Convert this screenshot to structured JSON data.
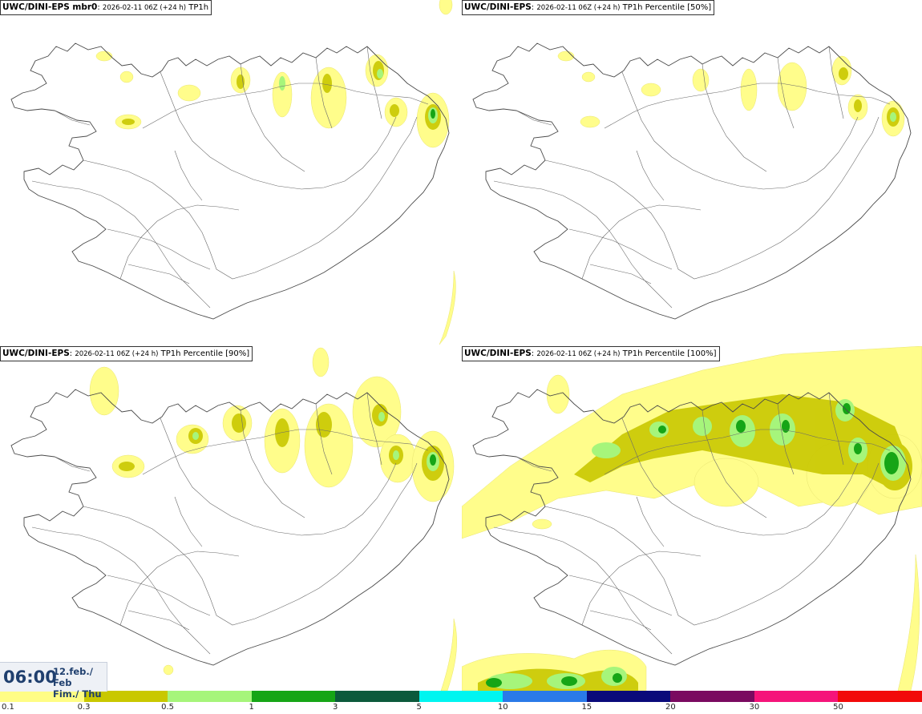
{
  "panels": [
    {
      "model": "UWC/DINI-EPS mbr0",
      "run": "2026-02-11 06Z (+24 h)",
      "param": "TP1h"
    },
    {
      "model": "UWC/DINI-EPS",
      "run": "2026-02-11 06Z (+24 h)",
      "param": "TP1h Percentile [50%]"
    },
    {
      "model": "UWC/DINI-EPS",
      "run": "2026-02-11 06Z (+24 h)",
      "param": "TP1h Percentile [90%]"
    },
    {
      "model": "UWC/DINI-EPS",
      "run": "2026-02-11 06Z (+24 h)",
      "param": "TP1h Percentile [100%]"
    }
  ],
  "valid_time": {
    "hour": "06:00",
    "date_line": "12.feb./ Feb",
    "day_line": "Fim./ Thu"
  },
  "legend": {
    "colors": [
      "#fffd85",
      "#c9c800",
      "#a6f57b",
      "#16a516",
      "#0c5a3c",
      "#00f5f0",
      "#2a7ae8",
      "#0a0a7a",
      "#7a0a60",
      "#f5147a",
      "#f20a0a"
    ],
    "ticks": [
      "0.1",
      "0.3",
      "0.5",
      "1",
      "3",
      "5",
      "10",
      "15",
      "20",
      "30",
      "50"
    ]
  }
}
